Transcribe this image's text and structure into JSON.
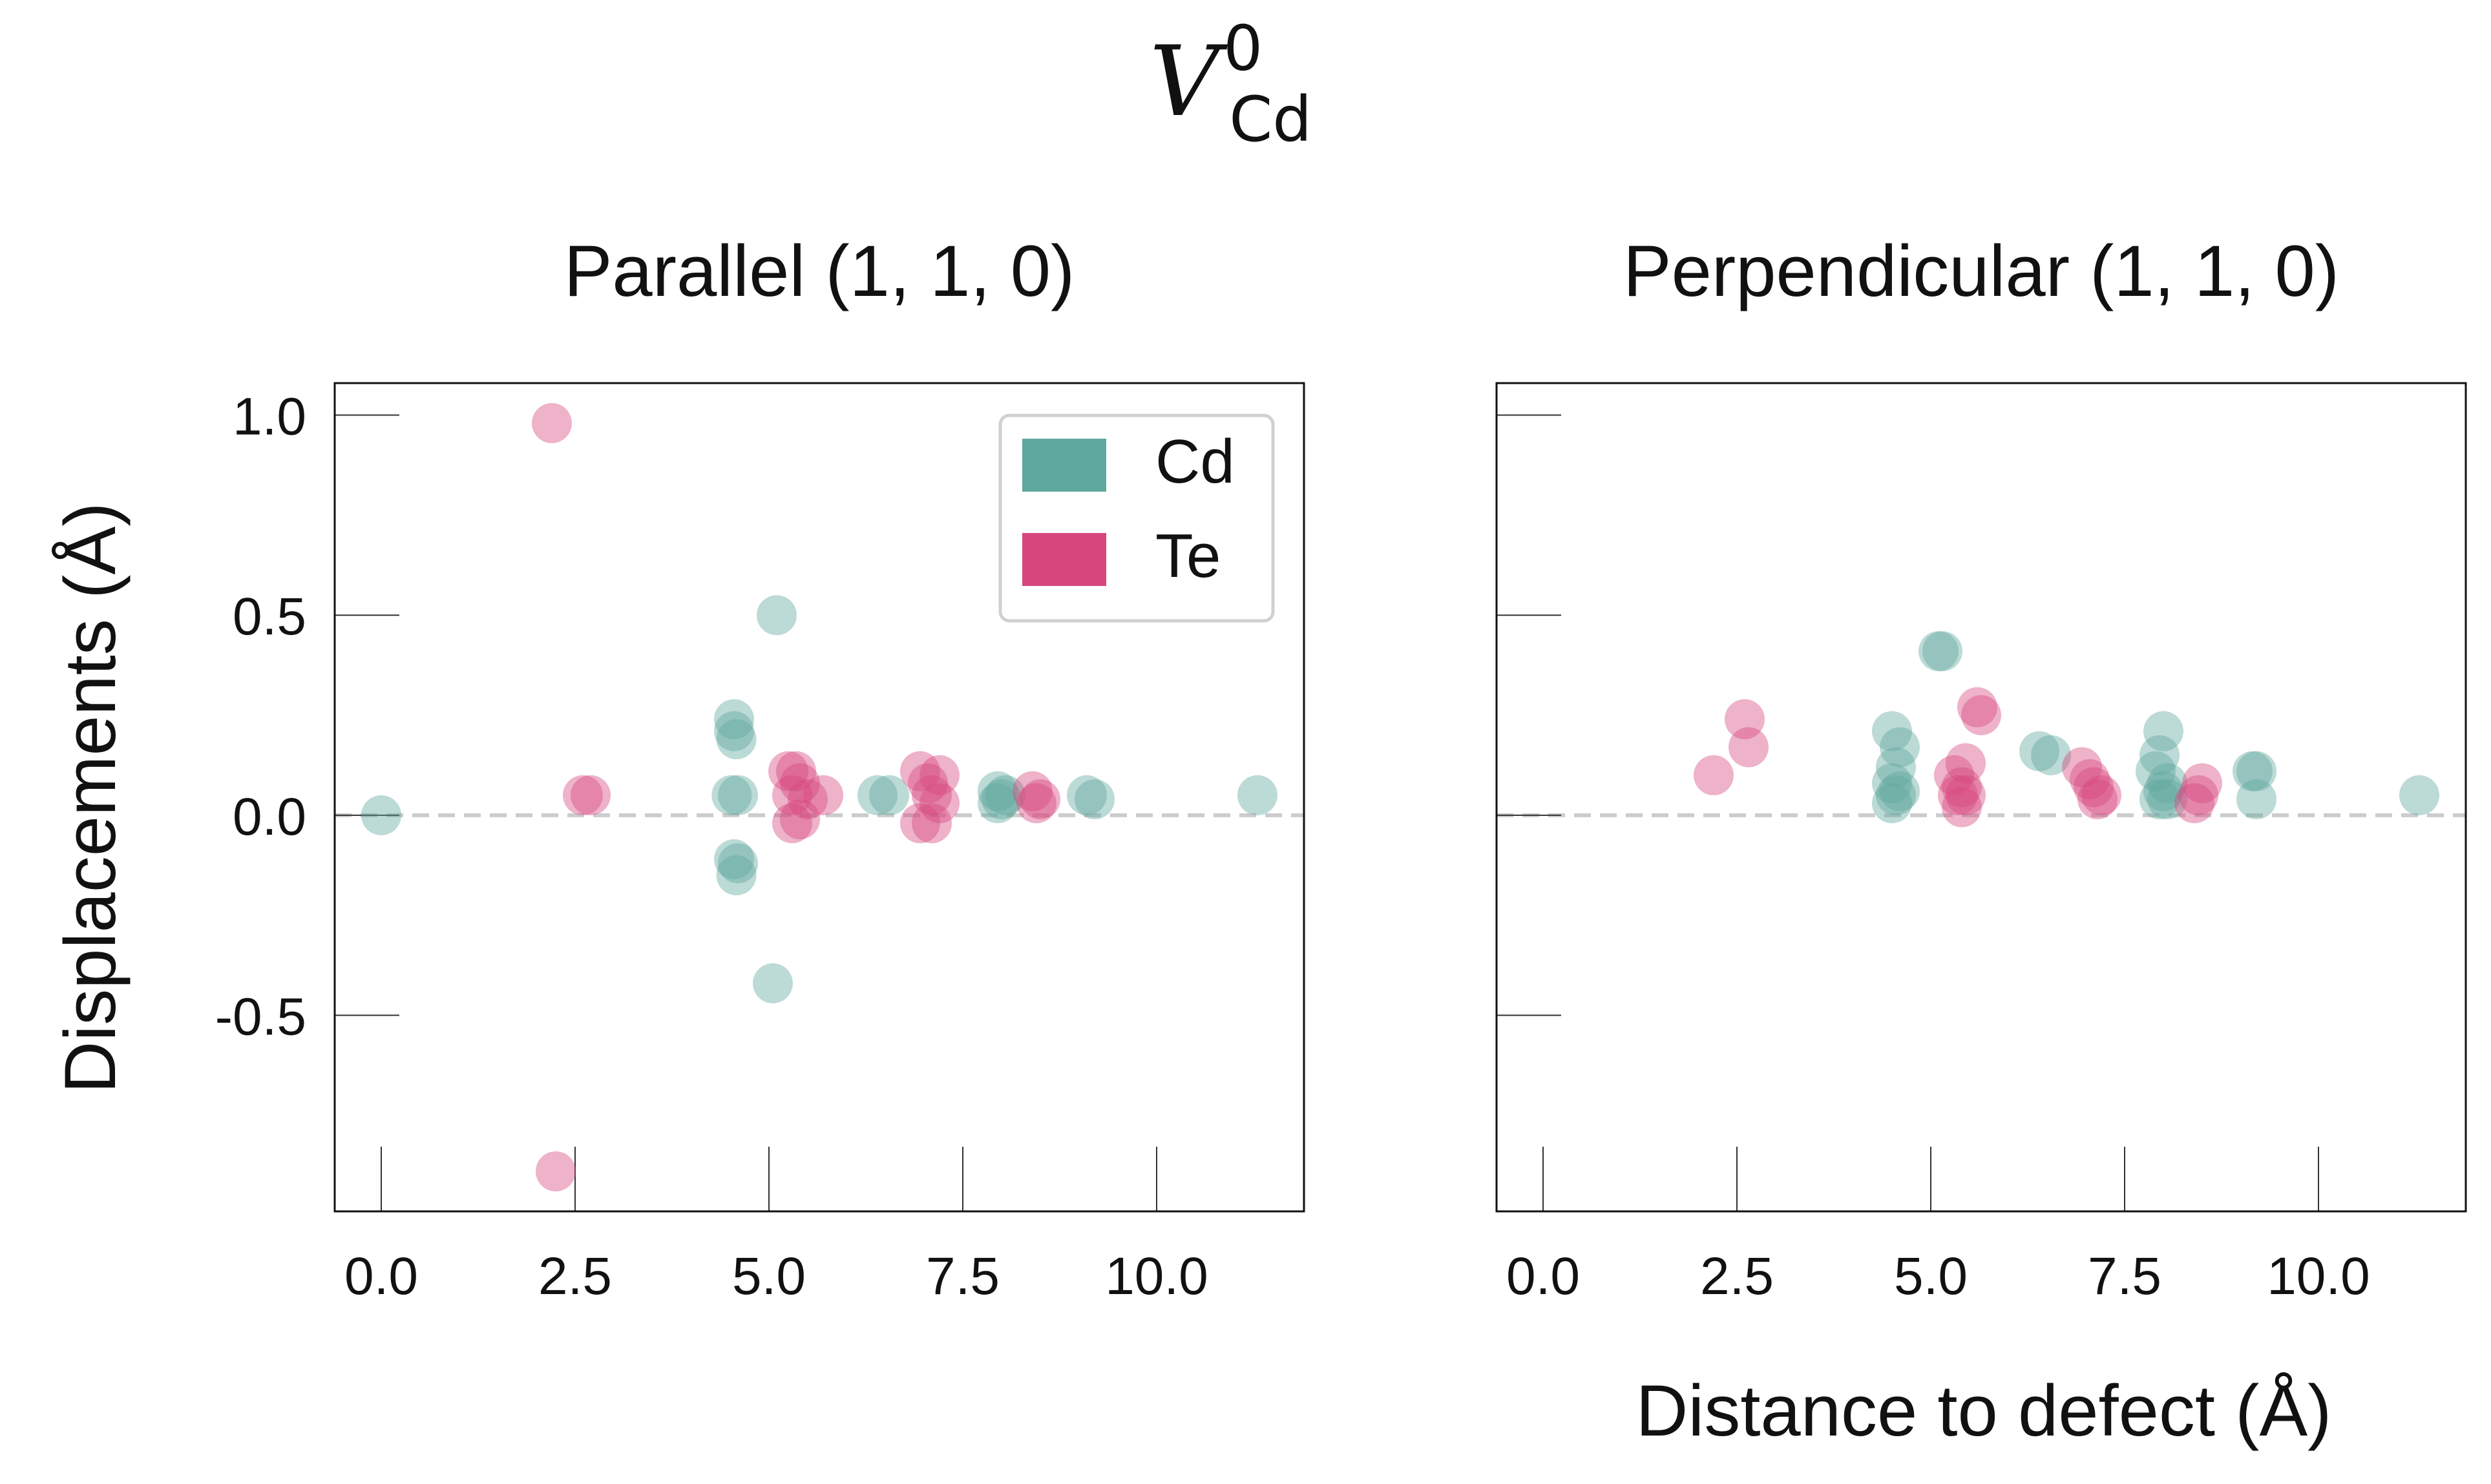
{
  "figure": {
    "title_main": "V",
    "title_superscript": "0",
    "title_subscript": "Cd",
    "xlabel": "Distance to defect (Å)",
    "ylabel": "Displacements (Å)"
  },
  "colors": {
    "Cd": "#5fa89e",
    "Te": "#d6477e",
    "zero_line": "#cccccc"
  },
  "chart_data": [
    {
      "type": "scatter",
      "title": "Parallel (1, 1, 0)",
      "xlim": [
        -0.6,
        11.9
      ],
      "ylim": [
        -0.99,
        1.08
      ],
      "xticks": [
        0.0,
        2.5,
        5.0,
        7.5,
        10.0
      ],
      "xtick_labels": [
        "0.0",
        "2.5",
        "5.0",
        "7.5",
        "10.0"
      ],
      "yticks": [
        1.0,
        0.5,
        0.0,
        -0.5
      ],
      "ytick_labels": [
        "1.0",
        "0.5",
        "0.0",
        "-0.5"
      ],
      "legend": {
        "position": "top-right",
        "entries": [
          "Cd",
          "Te"
        ]
      },
      "series": [
        {
          "name": "Cd",
          "points": [
            [
              0.0,
              0.0
            ],
            [
              4.55,
              0.24
            ],
            [
              4.55,
              0.21
            ],
            [
              4.58,
              0.19
            ],
            [
              4.52,
              0.05
            ],
            [
              4.6,
              0.05
            ],
            [
              4.55,
              -0.11
            ],
            [
              4.6,
              -0.12
            ],
            [
              4.58,
              -0.15
            ],
            [
              5.1,
              0.5
            ],
            [
              5.05,
              -0.42
            ],
            [
              6.4,
              0.05
            ],
            [
              6.55,
              0.05
            ],
            [
              7.95,
              0.06
            ],
            [
              8.0,
              0.04
            ],
            [
              7.95,
              0.03
            ],
            [
              8.05,
              0.05
            ],
            [
              9.1,
              0.05
            ],
            [
              9.2,
              0.04
            ],
            [
              11.3,
              0.05
            ]
          ]
        },
        {
          "name": "Te",
          "points": [
            [
              2.2,
              0.98
            ],
            [
              2.25,
              -0.89
            ],
            [
              2.6,
              0.05
            ],
            [
              2.7,
              0.05
            ],
            [
              5.25,
              0.11
            ],
            [
              5.35,
              0.11
            ],
            [
              5.4,
              0.08
            ],
            [
              5.3,
              0.05
            ],
            [
              5.5,
              0.04
            ],
            [
              5.7,
              0.05
            ],
            [
              5.3,
              -0.02
            ],
            [
              5.4,
              -0.01
            ],
            [
              6.95,
              0.11
            ],
            [
              7.05,
              0.08
            ],
            [
              7.2,
              0.1
            ],
            [
              7.1,
              0.05
            ],
            [
              7.2,
              0.03
            ],
            [
              6.95,
              -0.02
            ],
            [
              7.1,
              -0.02
            ],
            [
              8.4,
              0.06
            ],
            [
              8.5,
              0.04
            ],
            [
              8.45,
              0.03
            ]
          ]
        }
      ]
    },
    {
      "type": "scatter",
      "title": "Perpendicular (1, 1, 0)",
      "xlim": [
        -0.6,
        11.9
      ],
      "ylim": [
        -0.99,
        1.08
      ],
      "xticks": [
        0.0,
        2.5,
        5.0,
        7.5,
        10.0
      ],
      "xtick_labels": [
        "0.0",
        "2.5",
        "5.0",
        "7.5",
        "10.0"
      ],
      "yticks": [
        1.0,
        0.5,
        0.0,
        -0.5
      ],
      "ytick_labels": [
        "",
        "",
        "",
        ""
      ],
      "series": [
        {
          "name": "Cd",
          "points": [
            [
              4.5,
              0.21
            ],
            [
              4.6,
              0.17
            ],
            [
              4.55,
              0.12
            ],
            [
              4.5,
              0.08
            ],
            [
              4.6,
              0.06
            ],
            [
              4.55,
              0.05
            ],
            [
              4.5,
              0.03
            ],
            [
              5.1,
              0.41
            ],
            [
              5.15,
              0.41
            ],
            [
              6.4,
              0.16
            ],
            [
              6.55,
              0.15
            ],
            [
              8.0,
              0.21
            ],
            [
              7.95,
              0.15
            ],
            [
              7.9,
              0.11
            ],
            [
              8.05,
              0.08
            ],
            [
              8.0,
              0.06
            ],
            [
              7.95,
              0.04
            ],
            [
              8.05,
              0.04
            ],
            [
              9.15,
              0.11
            ],
            [
              9.2,
              0.11
            ],
            [
              9.2,
              0.04
            ],
            [
              11.3,
              0.05
            ]
          ]
        },
        {
          "name": "Te",
          "points": [
            [
              2.2,
              0.1
            ],
            [
              2.6,
              0.24
            ],
            [
              2.65,
              0.17
            ],
            [
              5.6,
              0.27
            ],
            [
              5.65,
              0.25
            ],
            [
              5.45,
              0.13
            ],
            [
              5.3,
              0.1
            ],
            [
              5.4,
              0.07
            ],
            [
              5.35,
              0.05
            ],
            [
              5.45,
              0.05
            ],
            [
              5.4,
              0.02
            ],
            [
              6.95,
              0.12
            ],
            [
              7.05,
              0.09
            ],
            [
              7.1,
              0.07
            ],
            [
              7.2,
              0.05
            ],
            [
              7.15,
              0.04
            ],
            [
              8.5,
              0.08
            ],
            [
              8.45,
              0.05
            ],
            [
              8.4,
              0.03
            ]
          ]
        }
      ]
    }
  ]
}
